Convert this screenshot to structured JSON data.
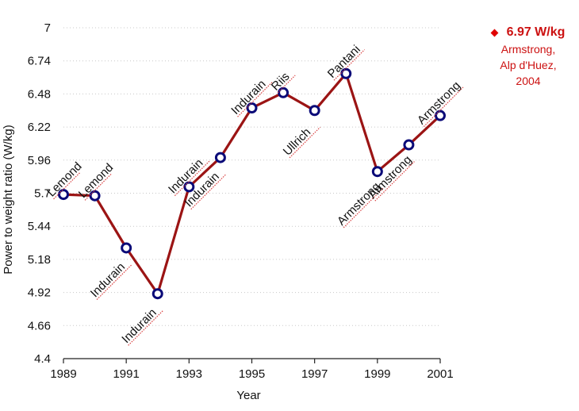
{
  "chart_data": {
    "type": "line",
    "title": "",
    "xlabel": "Year",
    "ylabel": "Power to weight ratio (W/kg)",
    "xlim": [
      1989,
      2001
    ],
    "ylim": [
      4.4,
      7
    ],
    "xticks": [
      "1989",
      "1991",
      "1993",
      "1995",
      "1997",
      "1999",
      "2001"
    ],
    "xtick_values": [
      1989,
      1991,
      1993,
      1995,
      1997,
      1999,
      2001
    ],
    "yticks": [
      "4.4",
      "4.66",
      "4.92",
      "5.18",
      "5.44",
      "5.7",
      "5.96",
      "6.22",
      "6.48",
      "6.74",
      "7"
    ],
    "ytick_values": [
      4.4,
      4.66,
      4.92,
      5.18,
      5.44,
      5.7,
      5.96,
      6.22,
      6.48,
      6.74,
      7
    ],
    "grid": "horizontal dotted",
    "series": [
      {
        "name": "Power to weight ratio",
        "color": "#9b1414",
        "marker_edge": "#0a0a78",
        "x": [
          1989,
          1990,
          1991,
          1992,
          1993,
          1994,
          1995,
          1996,
          1997,
          1998,
          1999,
          2000,
          2001
        ],
        "values": [
          5.69,
          5.68,
          5.27,
          4.91,
          5.75,
          5.98,
          6.37,
          6.49,
          6.35,
          6.64,
          5.87,
          6.08,
          6.31
        ]
      }
    ],
    "point_labels": [
      {
        "text": "Lemond",
        "x": 1989,
        "placement": "above"
      },
      {
        "text": "Lemond",
        "x": 1990,
        "placement": "above"
      },
      {
        "text": "Indurain",
        "x": 1991,
        "placement": "below"
      },
      {
        "text": "Indurain",
        "x": 1992,
        "placement": "below"
      },
      {
        "text": "Indurain",
        "x": 1993,
        "placement": "above"
      },
      {
        "text": "Indurain",
        "x": 1994,
        "placement": "below"
      },
      {
        "text": "Indurain",
        "x": 1995,
        "placement": "above"
      },
      {
        "text": "Riis",
        "x": 1996,
        "placement": "above"
      },
      {
        "text": "Ullrich",
        "x": 1997,
        "placement": "below"
      },
      {
        "text": "Pantani",
        "x": 1998,
        "placement": "above"
      },
      {
        "text": "Armstrong",
        "x": 1999,
        "placement": "below"
      },
      {
        "text": "Armstrong",
        "x": 2000,
        "placement": "below"
      },
      {
        "text": "Armstrong",
        "x": 2001,
        "placement": "above"
      }
    ],
    "annotation": {
      "value": "6.97 W/kg",
      "lines": [
        "Armstrong,",
        "Alp d'Huez,",
        "2004"
      ],
      "color": "#cc1111",
      "marker_color": "#e00000",
      "placement": "top-right"
    }
  }
}
